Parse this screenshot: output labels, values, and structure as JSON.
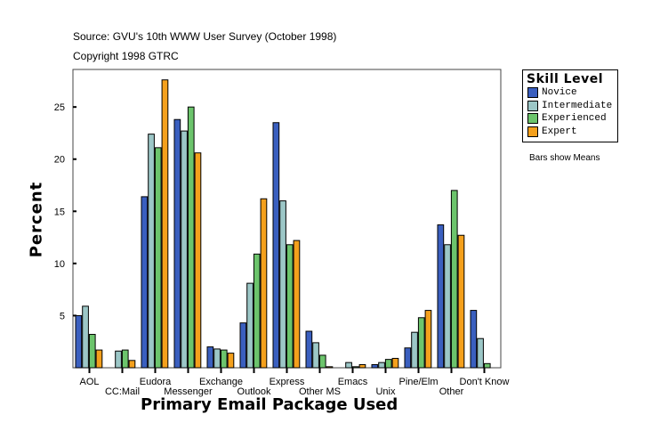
{
  "chart_data": {
    "type": "bar",
    "source": "Source: GVU's 10th WWW User Survey (October 1998)",
    "copyright": "Copyright 1998 GTRC",
    "xlabel": "Primary Email Package Used",
    "ylabel": "Percent",
    "note": "Bars show Means",
    "legend_title": "Skill Level",
    "legend_position": "right",
    "ylim": [
      0,
      28.6
    ],
    "yticks": [
      5,
      10,
      15,
      20,
      25
    ],
    "grid": false,
    "categories": [
      "AOL",
      "CC:Mail",
      "Eudora",
      "Messenger",
      "Exchange",
      "Outlook",
      "Express",
      "Other MS",
      "Emacs",
      "Unix",
      "Pine/Elm",
      "Other",
      "Don't Know"
    ],
    "series": [
      {
        "name": "Novice",
        "color": "#3a5fbf",
        "values": [
          5.0,
          0,
          16.4,
          23.8,
          2.0,
          4.3,
          23.5,
          3.5,
          0,
          0.3,
          1.9,
          13.7,
          5.5
        ]
      },
      {
        "name": "Intermediate",
        "color": "#9cc7c7",
        "values": [
          5.9,
          1.6,
          22.4,
          22.7,
          1.8,
          8.1,
          16.0,
          2.4,
          0.5,
          0.5,
          3.4,
          11.8,
          2.8
        ]
      },
      {
        "name": "Experienced",
        "color": "#6cc46c",
        "values": [
          3.2,
          1.7,
          21.1,
          25.0,
          1.7,
          10.9,
          11.8,
          1.2,
          0.1,
          0.8,
          4.8,
          17.0,
          0.4
        ]
      },
      {
        "name": "Expert",
        "color": "#f4a01c",
        "values": [
          1.7,
          0.7,
          27.6,
          20.6,
          1.4,
          16.2,
          12.2,
          0.1,
          0.3,
          0.9,
          5.5,
          12.7,
          0
        ]
      }
    ]
  }
}
